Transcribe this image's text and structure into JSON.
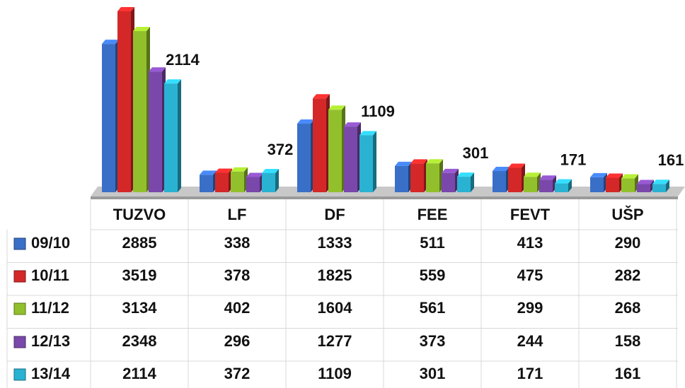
{
  "chart_data": {
    "type": "bar",
    "categories": [
      "TUZVO",
      "LF",
      "DF",
      "FEE",
      "FEVT",
      "UŠP"
    ],
    "series": [
      {
        "name": "09/10",
        "color": "#3a6fc8",
        "values": [
          2885,
          338,
          1333,
          511,
          413,
          290
        ]
      },
      {
        "name": "10/11",
        "color": "#d42828",
        "values": [
          3519,
          378,
          1825,
          559,
          475,
          282
        ]
      },
      {
        "name": "11/12",
        "color": "#92c02c",
        "values": [
          3134,
          402,
          1604,
          561,
          299,
          268
        ]
      },
      {
        "name": "12/13",
        "color": "#7a48aa",
        "values": [
          2348,
          296,
          1277,
          373,
          244,
          158
        ]
      },
      {
        "name": "13/14",
        "color": "#2ab2d2",
        "values": [
          2114,
          372,
          1109,
          301,
          171,
          161
        ]
      }
    ],
    "grid": false
  }
}
